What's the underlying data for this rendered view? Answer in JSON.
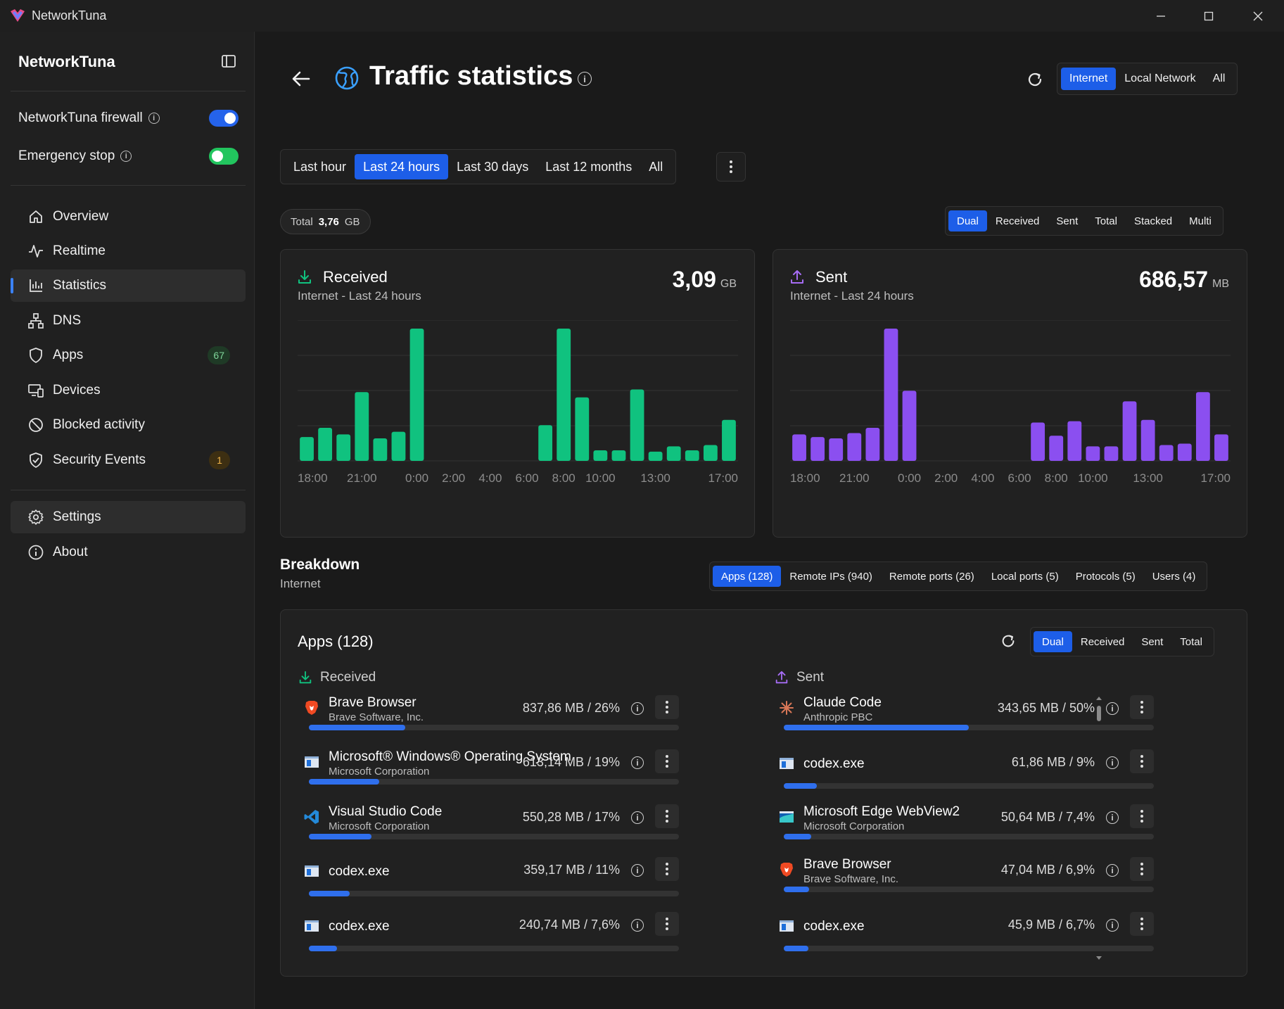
{
  "window": {
    "title": "NetworkTuna"
  },
  "sidebar": {
    "brand": "NetworkTuna",
    "toggles": [
      {
        "label": "NetworkTuna firewall",
        "on": true,
        "color": "#2563eb"
      },
      {
        "label": "Emergency stop",
        "on": false,
        "color": "#22c55e"
      }
    ],
    "nav": [
      {
        "label": "Overview",
        "icon": "home-icon"
      },
      {
        "label": "Realtime",
        "icon": "pulse-icon"
      },
      {
        "label": "Statistics",
        "icon": "bar-chart-icon",
        "active": true
      },
      {
        "label": "DNS",
        "icon": "network-tree-icon"
      },
      {
        "label": "Apps",
        "icon": "shield-icon",
        "badge": "67"
      },
      {
        "label": "Devices",
        "icon": "devices-icon"
      },
      {
        "label": "Blocked activity",
        "icon": "blocked-icon"
      },
      {
        "label": "Security Events",
        "icon": "shield-check-icon",
        "badge": "1"
      }
    ],
    "footer_nav": [
      {
        "label": "Settings",
        "icon": "gear-icon",
        "highlight": true
      },
      {
        "label": "About",
        "icon": "info-icon"
      }
    ]
  },
  "header": {
    "title": "Traffic statistics",
    "scope_options": [
      "Internet",
      "Local Network",
      "All"
    ],
    "scope_selected": "Internet"
  },
  "range": {
    "options": [
      "Last hour",
      "Last 24 hours",
      "Last 30 days",
      "Last 12 months",
      "All"
    ],
    "selected": "Last 24 hours"
  },
  "total": {
    "label": "Total",
    "value": "3,76",
    "unit": "GB"
  },
  "view_modes": {
    "options": [
      "Dual",
      "Received",
      "Sent",
      "Total",
      "Stacked",
      "Multi"
    ],
    "selected": "Dual"
  },
  "charts": {
    "received": {
      "title": "Received",
      "subtitle": "Internet - Last 24 hours",
      "value": "3,09",
      "unit": "GB",
      "color": "#10c27f"
    },
    "sent": {
      "title": "Sent",
      "subtitle": "Internet - Last 24 hours",
      "value": "686,57",
      "unit": "MB",
      "color": "#8b4ff0"
    }
  },
  "chart_data": [
    {
      "type": "bar",
      "title": "Received",
      "tick_labels": [
        "18:00",
        "21:00",
        "0:00",
        "2:00",
        "4:00",
        "6:00",
        "8:00",
        "10:00",
        "13:00",
        "17:00"
      ],
      "x_ticks_at_bar": [
        0,
        3,
        6,
        8,
        10,
        12,
        14,
        16,
        19,
        23
      ],
      "values": [
        18,
        25,
        20,
        52,
        17,
        22,
        100,
        0,
        0,
        0,
        0,
        0,
        0,
        27,
        100,
        48,
        8,
        8,
        54,
        7,
        11,
        8,
        12,
        31
      ],
      "ylim": [
        0,
        100
      ],
      "grid": true
    },
    {
      "type": "bar",
      "title": "Sent",
      "tick_labels": [
        "18:00",
        "21:00",
        "0:00",
        "2:00",
        "4:00",
        "6:00",
        "8:00",
        "10:00",
        "13:00",
        "17:00"
      ],
      "x_ticks_at_bar": [
        0,
        3,
        6,
        8,
        10,
        12,
        14,
        16,
        19,
        23
      ],
      "values": [
        20,
        18,
        17,
        21,
        25,
        100,
        53,
        0,
        0,
        0,
        0,
        0,
        0,
        29,
        19,
        30,
        11,
        11,
        45,
        31,
        12,
        13,
        52,
        20
      ],
      "ylim": [
        0,
        100
      ],
      "grid": true
    }
  ],
  "breakdown": {
    "title": "Breakdown",
    "subtitle": "Internet",
    "tabs": [
      "Apps (128)",
      "Remote IPs (940)",
      "Remote ports (26)",
      "Local ports (5)",
      "Protocols (5)",
      "Users (4)"
    ],
    "selected": "Apps (128)"
  },
  "apps": {
    "title": "Apps (128)",
    "modes": [
      "Dual",
      "Received",
      "Sent",
      "Total"
    ],
    "mode_selected": "Dual",
    "received_label": "Received",
    "sent_label": "Sent",
    "received": [
      {
        "name": "Brave Browser",
        "vendor": "Brave Software, Inc.",
        "value": "837,86 MB / 26%",
        "pct": 26,
        "icon": "brave-icon"
      },
      {
        "name": "Microsoft® Windows® Operating System",
        "vendor": "Microsoft Corporation",
        "value": "613,14 MB / 19%",
        "pct": 19,
        "icon": "window-app-icon"
      },
      {
        "name": "Visual Studio Code",
        "vendor": "Microsoft Corporation",
        "value": "550,28 MB / 17%",
        "pct": 17,
        "icon": "vscode-icon"
      },
      {
        "name": "codex.exe",
        "vendor": "",
        "value": "359,17 MB / 11%",
        "pct": 11,
        "icon": "window-app-icon"
      },
      {
        "name": "codex.exe",
        "vendor": "",
        "value": "240,74 MB / 7,6%",
        "pct": 7.6,
        "icon": "window-app-icon"
      }
    ],
    "sent": [
      {
        "name": "Claude Code",
        "vendor": "Anthropic PBC",
        "value": "343,65 MB / 50%",
        "pct": 50,
        "icon": "claude-icon"
      },
      {
        "name": "codex.exe",
        "vendor": "",
        "value": "61,86 MB / 9%",
        "pct": 9,
        "icon": "window-app-icon"
      },
      {
        "name": "Microsoft Edge WebView2",
        "vendor": "Microsoft Corporation",
        "value": "50,64 MB / 7,4%",
        "pct": 7.4,
        "icon": "edge-webview-icon"
      },
      {
        "name": "Brave Browser",
        "vendor": "Brave Software, Inc.",
        "value": "47,04 MB / 6,9%",
        "pct": 6.9,
        "icon": "brave-icon"
      },
      {
        "name": "codex.exe",
        "vendor": "",
        "value": "45,9 MB / 6,7%",
        "pct": 6.7,
        "icon": "window-app-icon"
      }
    ]
  }
}
